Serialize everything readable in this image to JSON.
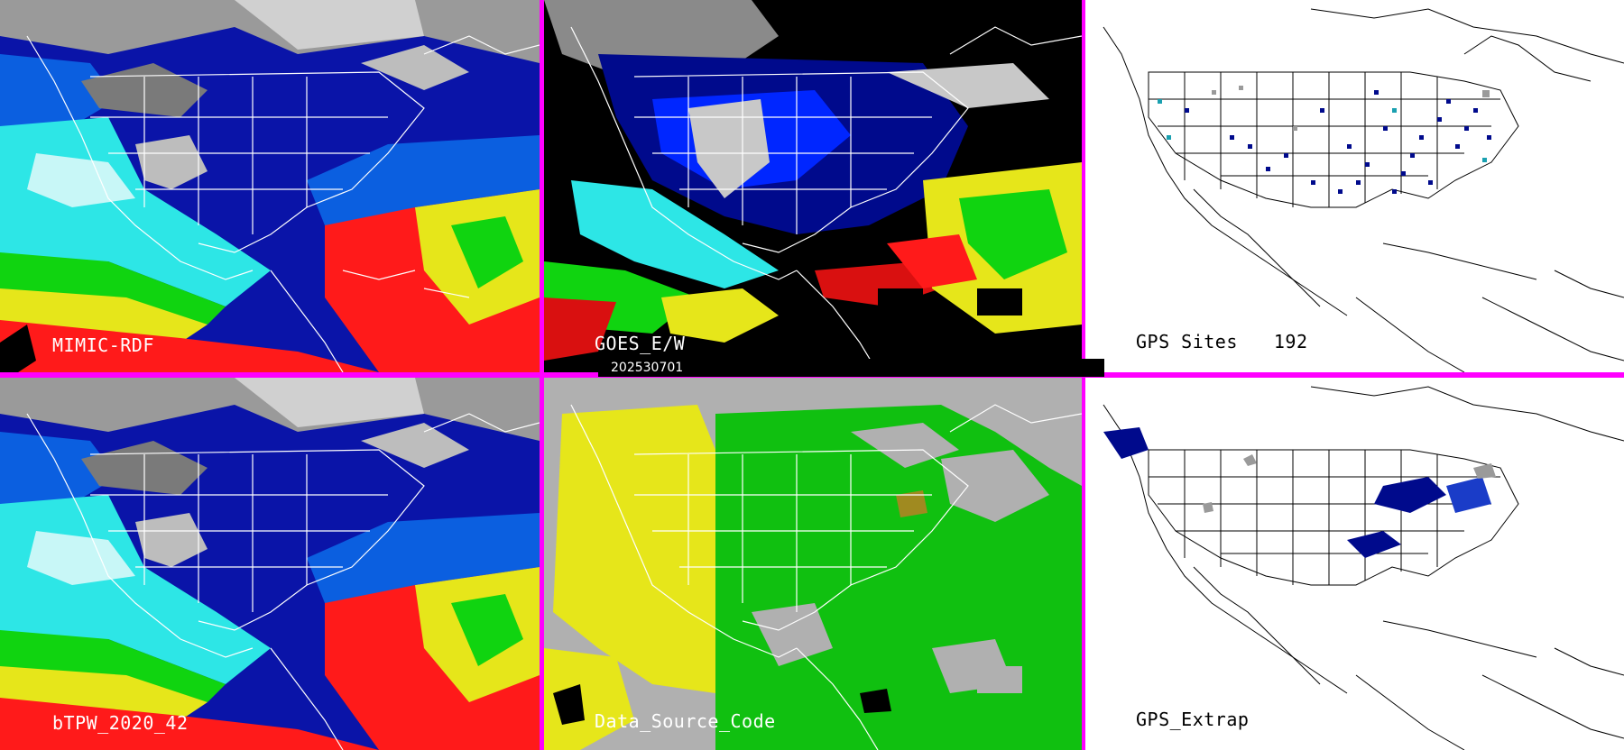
{
  "panels": {
    "mimic": {
      "label": "MIMIC-RDF"
    },
    "goes": {
      "label": "GOES_E/W"
    },
    "gps_sites": {
      "label": "GPS Sites",
      "count": "192"
    },
    "btpw": {
      "label": "bTPW_2020_42"
    },
    "data_source": {
      "label": "Data_Source_Code"
    },
    "gps_extrap": {
      "label": "GPS_Extrap"
    }
  },
  "date": "202530701",
  "colors": {
    "divider": "#ff00ff",
    "palette": [
      "#d9d9d9",
      "#000a8c",
      "#0026ff",
      "#2de6e6",
      "#10d410",
      "#e6e61a",
      "#ff1a1a",
      "#d91010"
    ]
  }
}
